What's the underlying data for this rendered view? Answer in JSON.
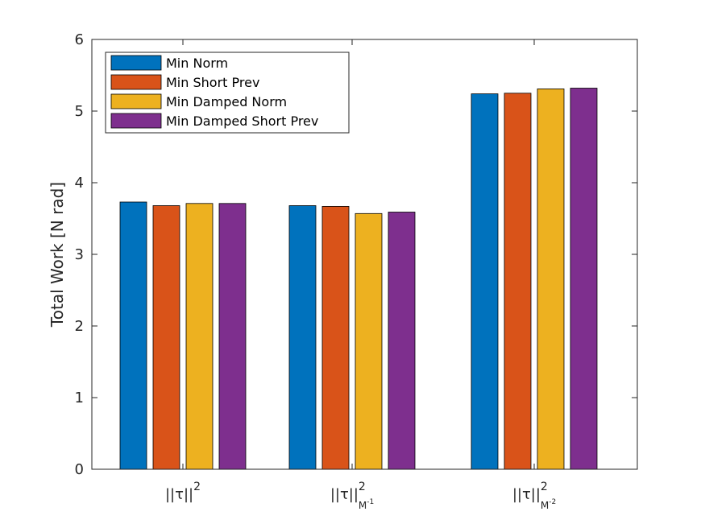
{
  "chart_data": {
    "type": "bar",
    "categories": [
      {
        "base": "||τ||",
        "sup": "2",
        "sub": "",
        "subsup": ""
      },
      {
        "base": "||τ||",
        "sup": "2",
        "sub": "M",
        "subsup": "-1"
      },
      {
        "base": "||τ||",
        "sup": "2",
        "sub": "M",
        "subsup": "-2"
      }
    ],
    "series": [
      {
        "name": "Min Norm",
        "color": "#0072bd",
        "values": [
          3.73,
          3.68,
          5.24
        ]
      },
      {
        "name": "Min Short Prev",
        "color": "#d95319",
        "values": [
          3.68,
          3.67,
          5.25
        ]
      },
      {
        "name": "Min Damped Norm",
        "color": "#edb120",
        "values": [
          3.71,
          3.57,
          5.31
        ]
      },
      {
        "name": "Min Damped Short Prev",
        "color": "#7e2f8e",
        "values": [
          3.71,
          3.59,
          5.32
        ]
      }
    ],
    "ylabel": "Total Work [N rad]",
    "ylim": [
      0,
      6
    ],
    "yticks": [
      "0",
      "1",
      "2",
      "3",
      "4",
      "5",
      "6"
    ],
    "grid": false,
    "legend_position": "top-left"
  }
}
